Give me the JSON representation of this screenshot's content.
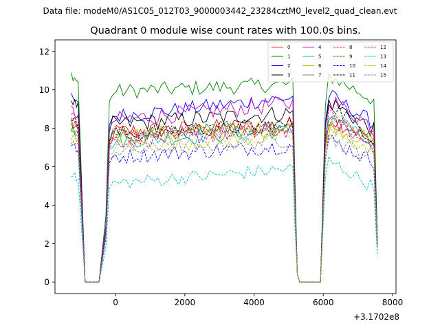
{
  "file_label": "Data file: modeM0/AS1C05_012T03_9000003442_23284cztM0_level2_quad_clean.evt",
  "chart_data": {
    "type": "line",
    "title": "Quadrant 0 module wise count rates with 100.0s bins.",
    "xlabel": "",
    "ylabel": "",
    "x_offset_label": "+3.1702e8",
    "xlim": [
      -1750,
      8100
    ],
    "ylim": [
      -0.6,
      12.6
    ],
    "xticks": [
      0,
      2000,
      4000,
      6000,
      8000
    ],
    "xtick_labels": [
      "0",
      "2000",
      "4000",
      "6000",
      "8000"
    ],
    "yticks": [
      0,
      2,
      4,
      6,
      8,
      10,
      12
    ],
    "ytick_labels": [
      "0",
      "2",
      "4",
      "6",
      "8",
      "10",
      "12"
    ],
    "legend_position": "top-right",
    "grid": false,
    "segments": [
      {
        "start": -1280,
        "end": -1080,
        "step": 50
      },
      {
        "start": -880,
        "end": -420,
        "step": 100
      },
      {
        "start": -280,
        "end": 5120,
        "step": 100
      },
      {
        "start": 5180,
        "end": 5320,
        "step": 70
      },
      {
        "start": 5420,
        "end": 5960,
        "step": 100
      },
      {
        "start": 6060,
        "end": 7620,
        "step": 100
      }
    ],
    "dip_values": [
      [
        -980,
        3.6
      ],
      [
        -880,
        0.0
      ],
      [
        -420,
        0.0
      ],
      [
        -280,
        2.5
      ],
      [
        5180,
        4.0
      ],
      [
        5250,
        0.4
      ],
      [
        5320,
        0.0
      ],
      [
        5960,
        0.0
      ],
      [
        6060,
        7.0
      ]
    ],
    "series": [
      {
        "name": "0",
        "color": "#ff0000",
        "dash": false,
        "level": 7.8,
        "start_level": 8.2,
        "rise": 0.4,
        "noise": 0.45,
        "post": 8.6,
        "end_val": 2.0
      },
      {
        "name": "1",
        "color": "#008000",
        "dash": false,
        "level": 9.9,
        "start_level": 10.8,
        "rise": 0.4,
        "noise": 0.4,
        "post": 10.8,
        "end_val": 2.3
      },
      {
        "name": "2",
        "color": "#0000ff",
        "dash": false,
        "level": 8.6,
        "start_level": 9.6,
        "rise": 1.0,
        "noise": 0.4,
        "post": 9.8,
        "end_val": 2.2
      },
      {
        "name": "3",
        "color": "#000000",
        "dash": false,
        "level": 8.2,
        "start_level": 9.5,
        "rise": 0.6,
        "noise": 0.45,
        "post": 9.5,
        "end_val": 2.1
      },
      {
        "name": "4",
        "color": "#bf00bf",
        "dash": false,
        "level": 8.4,
        "start_level": 9.0,
        "rise": 0.9,
        "noise": 0.45,
        "post": 9.6,
        "end_val": 2.0
      },
      {
        "name": "5",
        "color": "#00bfbf",
        "dash": false,
        "level": 7.3,
        "start_level": 8.1,
        "rise": 0.6,
        "noise": 0.4,
        "post": 8.8,
        "end_val": 2.0
      },
      {
        "name": "6",
        "color": "#bfbf00",
        "dash": false,
        "level": 7.6,
        "start_level": 7.8,
        "rise": 0.4,
        "noise": 0.45,
        "post": 8.2,
        "end_val": 1.9
      },
      {
        "name": "7",
        "color": "#808080",
        "dash": false,
        "level": 7.7,
        "start_level": 8.4,
        "rise": 0.4,
        "noise": 0.4,
        "post": 8.3,
        "end_val": 1.9
      },
      {
        "name": "8",
        "color": "#ff0000",
        "dash": true,
        "level": 7.5,
        "start_level": 8.4,
        "rise": 0.5,
        "noise": 0.4,
        "post": 8.5,
        "end_val": 1.9
      },
      {
        "name": "9",
        "color": "#008000",
        "dash": true,
        "level": 7.6,
        "start_level": 8.0,
        "rise": 0.5,
        "noise": 0.4,
        "post": 9.0,
        "end_val": 1.9
      },
      {
        "name": "10",
        "color": "#0000ff",
        "dash": true,
        "level": 6.5,
        "start_level": 7.2,
        "rise": 0.6,
        "noise": 0.4,
        "post": 7.5,
        "end_val": 1.8
      },
      {
        "name": "11",
        "color": "#000000",
        "dash": true,
        "level": 7.7,
        "start_level": 8.6,
        "rise": 0.5,
        "noise": 0.4,
        "post": 9.5,
        "end_val": 2.0
      },
      {
        "name": "12",
        "color": "#bf00bf",
        "dash": true,
        "level": 7.3,
        "start_level": 8.9,
        "rise": 0.6,
        "noise": 0.4,
        "post": 8.7,
        "end_val": 1.9
      },
      {
        "name": "13",
        "color": "#00bfbf",
        "dash": true,
        "level": 5.1,
        "start_level": 5.7,
        "rise": 0.8,
        "noise": 0.35,
        "post": 6.4,
        "end_val": 1.4
      },
      {
        "name": "14",
        "color": "#bfbf00",
        "dash": true,
        "level": 7.0,
        "start_level": 7.6,
        "rise": 0.6,
        "noise": 0.4,
        "post": 8.0,
        "end_val": 1.8
      },
      {
        "name": "15",
        "color": "#808080",
        "dash": true,
        "level": 6.8,
        "start_level": 7.4,
        "rise": 0.6,
        "noise": 0.4,
        "post": 7.5,
        "end_val": 1.7
      }
    ]
  }
}
